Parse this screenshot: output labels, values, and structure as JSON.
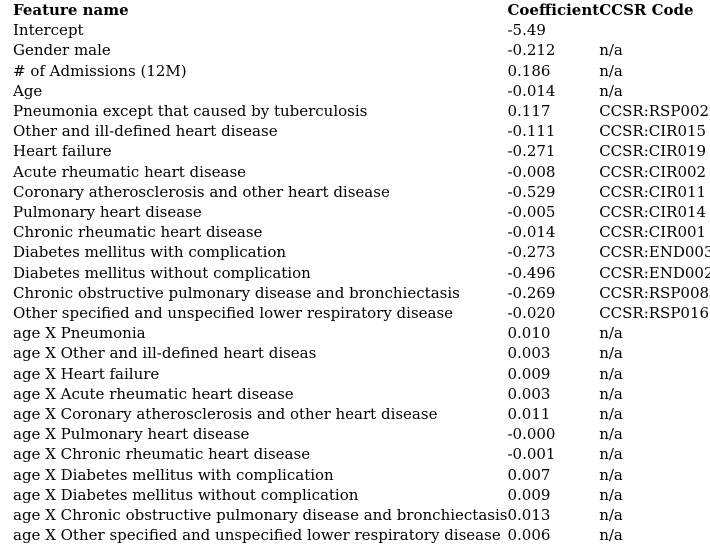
{
  "table": {
    "headers": {
      "feature": "Feature name",
      "coefficient": "Coefficient",
      "code": "CCSR Code"
    },
    "rows": [
      {
        "feature": "Intercept",
        "coefficient": "-5.49",
        "code": ""
      },
      {
        "feature": "Gender male",
        "coefficient": "-0.212",
        "code": "n/a"
      },
      {
        "feature": "# of Admissions (12M)",
        "coefficient": "0.186",
        "code": "n/a"
      },
      {
        "feature": "Age",
        "coefficient": "-0.014",
        "code": "n/a"
      },
      {
        "feature": "Pneumonia except that caused by tuberculosis",
        "coefficient": "0.117",
        "code": "CCSR:RSP002"
      },
      {
        "feature": "Other and ill-defined heart disease",
        "coefficient": "-0.111",
        "code": "CCSR:CIR015"
      },
      {
        "feature": "Heart failure",
        "coefficient": "-0.271",
        "code": "CCSR:CIR019"
      },
      {
        "feature": "Acute rheumatic heart disease",
        "coefficient": "-0.008",
        "code": "CCSR:CIR002"
      },
      {
        "feature": "Coronary atherosclerosis and other heart disease",
        "coefficient": "-0.529",
        "code": "CCSR:CIR011"
      },
      {
        "feature": "Pulmonary heart disease",
        "coefficient": "-0.005",
        "code": "CCSR:CIR014"
      },
      {
        "feature": "Chronic rheumatic heart disease",
        "coefficient": "-0.014",
        "code": "CCSR:CIR001"
      },
      {
        "feature": "Diabetes mellitus with complication",
        "coefficient": "-0.273",
        "code": "CCSR:END003"
      },
      {
        "feature": "Diabetes mellitus without complication",
        "coefficient": "-0.496",
        "code": "CCSR:END002"
      },
      {
        "feature": "Chronic obstructive pulmonary disease and bronchiectasis",
        "coefficient": "-0.269",
        "code": "CCSR:RSP008"
      },
      {
        "feature": "Other specified and unspecified lower respiratory disease",
        "coefficient": "-0.020",
        "code": "CCSR:RSP016"
      },
      {
        "feature": "age X Pneumonia",
        "coefficient": "0.010",
        "code": "n/a"
      },
      {
        "feature": "age X Other and ill-defined heart diseas",
        "coefficient": "0.003",
        "code": "n/a"
      },
      {
        "feature": "age X Heart failure",
        "coefficient": "0.009",
        "code": "n/a"
      },
      {
        "feature": "age X Acute rheumatic heart disease",
        "coefficient": "0.003",
        "code": "n/a"
      },
      {
        "feature": "age X Coronary atherosclerosis and other heart disease",
        "coefficient": "0.011",
        "code": "n/a"
      },
      {
        "feature": "age X Pulmonary heart disease",
        "coefficient": "-0.000",
        "code": "n/a"
      },
      {
        "feature": "age X Chronic rheumatic heart disease",
        "coefficient": "-0.001",
        "code": "n/a"
      },
      {
        "feature": "age X Diabetes mellitus with complication",
        "coefficient": "0.007",
        "code": "n/a"
      },
      {
        "feature": "age X Diabetes mellitus without complication",
        "coefficient": "0.009",
        "code": "n/a"
      },
      {
        "feature": "age X Chronic obstructive pulmonary disease and bronchiectasis",
        "coefficient": "0.013",
        "code": "n/a"
      },
      {
        "feature": "age X Other specified and unspecified lower respiratory disease",
        "coefficient": "0.006",
        "code": "n/a"
      }
    ]
  }
}
